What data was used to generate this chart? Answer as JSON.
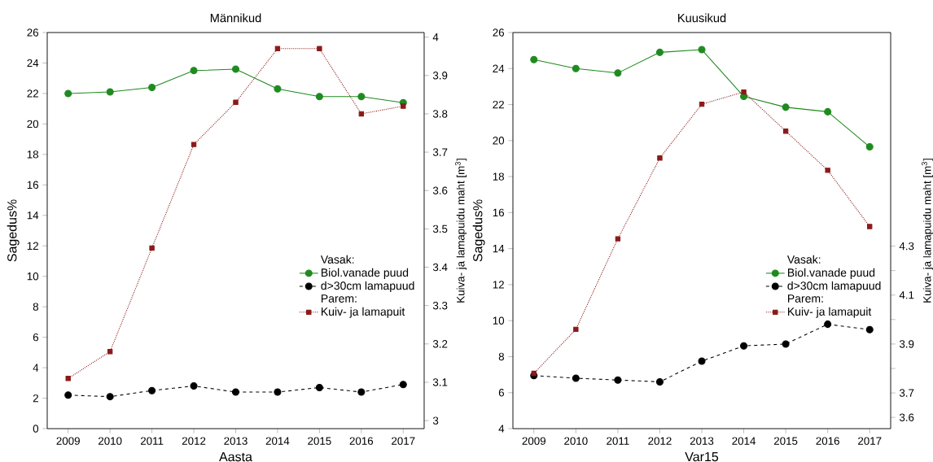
{
  "chart_data": [
    {
      "type": "line",
      "title": "Männikud",
      "xlabel": "Aasta",
      "ylabel": "Sagedus%",
      "y2label": "Kuiva- ja lamapuidu maht [m$^{3}$]",
      "categories": [
        "2009",
        "2010",
        "2011",
        "2012",
        "2013",
        "2014",
        "2015",
        "2016",
        "2017"
      ],
      "series": [
        {
          "name": "Biol.vanade puud",
          "color": "#1f8a1f",
          "marker": "circle",
          "line_style": "solid",
          "values": [
            22.0,
            22.1,
            22.4,
            23.5,
            23.6,
            22.3,
            21.8,
            21.8,
            21.4
          ]
        },
        {
          "name": "d>30cm lamapuud",
          "color": "#000000",
          "marker": "circle",
          "line_style": "dashed",
          "values": [
            2.2,
            2.1,
            2.5,
            2.8,
            2.4,
            2.4,
            2.7,
            2.4,
            2.9
          ]
        },
        {
          "name": "Kuiv- ja lamapuit",
          "color": "#8b1a1a",
          "marker": "square",
          "line_style": "dotted",
          "axis": "y2",
          "values": [
            3.11,
            3.18,
            3.45,
            3.72,
            3.83,
            3.97,
            3.97,
            3.8,
            3.82
          ]
        }
      ],
      "ylim": [
        0,
        26
      ],
      "yticks": [
        0,
        2,
        4,
        6,
        8,
        10,
        12,
        14,
        16,
        18,
        20,
        22,
        24,
        26
      ],
      "y2lim": [
        2.979,
        4.012
      ],
      "y2ticks": [
        3,
        3.1,
        3.2,
        3.3,
        3.4,
        3.5,
        3.6,
        3.7,
        3.8,
        3.9,
        4
      ],
      "legend": "bottom right",
      "legend_title": "Vasak:",
      "annotations": [
        "Parem:"
      ]
    },
    {
      "type": "line",
      "title": "Kuusikud",
      "xlabel": "Var15",
      "ylabel": "Sagedus%",
      "y2label": "Kuiva- ja lamapuidu maht [m$^{3}$]",
      "categories": [
        "2009",
        "2010",
        "2011",
        "2012",
        "2013",
        "2014",
        "2015",
        "2016",
        "2017"
      ],
      "series": [
        {
          "name": "Biol.vanade puud",
          "color": "#1f8a1f",
          "marker": "circle",
          "line_style": "solid",
          "values": [
            24.5,
            24.0,
            23.75,
            24.9,
            25.05,
            22.45,
            21.85,
            21.6,
            19.65
          ]
        },
        {
          "name": "d>30cm lamapuud",
          "color": "#000000",
          "marker": "circle",
          "line_style": "dashed",
          "values": [
            6.95,
            6.8,
            6.7,
            6.6,
            7.75,
            8.6,
            8.7,
            9.8,
            9.5
          ]
        },
        {
          "name": "Kuiv- ja lamapuit",
          "color": "#8b1a1a",
          "marker": "square",
          "line_style": "dotted",
          "axis": "y2",
          "values": [
            3.78,
            3.96,
            4.33,
            4.66,
            4.88,
            4.93,
            4.77,
            4.61,
            4.38
          ]
        }
      ],
      "ylim": [
        4,
        26
      ],
      "yticks": [
        4,
        6,
        8,
        10,
        12,
        14,
        16,
        18,
        20,
        22,
        24,
        26
      ],
      "y2lim": [
        3.554,
        5.173
      ],
      "y2ticks": [
        3.6,
        3.7,
        {
          "value": 3.8,
          "label": null
        },
        3.9,
        {
          "value": 4.0,
          "label": null
        },
        4.1,
        {
          "value": 4.2,
          "label": null
        },
        4.3
      ],
      "legend": "bottom right",
      "legend_title": "Vasak:",
      "annotations": [
        "Parem:"
      ]
    }
  ]
}
